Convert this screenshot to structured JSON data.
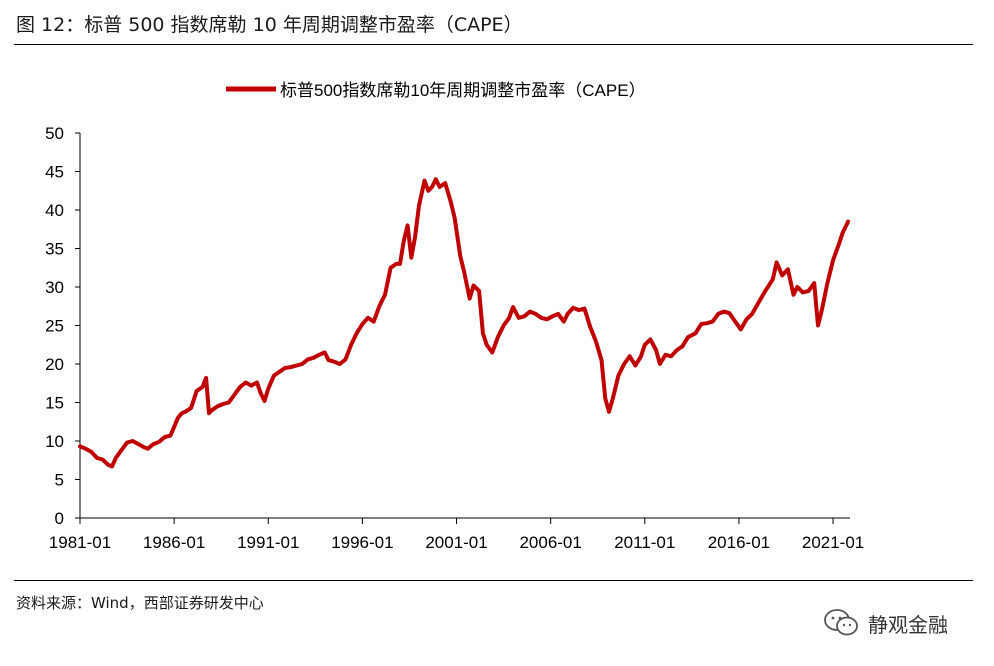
{
  "figure": {
    "title": "图 12：标普 500 指数席勒 10 年周期调整市盈率（CAPE）",
    "source": "资料来源：Wind，西部证券研发中心",
    "watermark": "静观金融"
  },
  "colors": {
    "line": "#C00000",
    "axis": "#000000"
  },
  "chart_data": {
    "type": "line",
    "title": "",
    "xlabel": "",
    "ylabel": "",
    "xlim": [
      1981.0,
      2021.9
    ],
    "ylim": [
      0,
      50
    ],
    "yticks": [
      0,
      5,
      10,
      15,
      20,
      25,
      30,
      35,
      40,
      45,
      50
    ],
    "xticks": [
      {
        "label": "1981-01",
        "value": 1981.0
      },
      {
        "label": "1986-01",
        "value": 1986.0
      },
      {
        "label": "1991-01",
        "value": 1991.0
      },
      {
        "label": "1996-01",
        "value": 1996.0
      },
      {
        "label": "2001-01",
        "value": 2001.0
      },
      {
        "label": "2006-01",
        "value": 2006.0
      },
      {
        "label": "2011-01",
        "value": 2011.0
      },
      {
        "label": "2016-01",
        "value": 2016.0
      },
      {
        "label": "2021-01",
        "value": 2021.0
      }
    ],
    "grid": false,
    "legend": "top-center",
    "series": [
      {
        "name": "标普500指数席勒10年周期调整市盈率（CAPE）",
        "points": [
          [
            1981.0,
            9.3
          ],
          [
            1981.3,
            9.0
          ],
          [
            1981.6,
            8.6
          ],
          [
            1981.9,
            7.8
          ],
          [
            1982.2,
            7.6
          ],
          [
            1982.5,
            6.9
          ],
          [
            1982.7,
            6.7
          ],
          [
            1982.9,
            7.8
          ],
          [
            1983.2,
            8.8
          ],
          [
            1983.5,
            9.8
          ],
          [
            1983.8,
            10.0
          ],
          [
            1984.1,
            9.6
          ],
          [
            1984.4,
            9.2
          ],
          [
            1984.6,
            9.0
          ],
          [
            1984.9,
            9.6
          ],
          [
            1985.2,
            9.9
          ],
          [
            1985.5,
            10.5
          ],
          [
            1985.8,
            10.7
          ],
          [
            1986.0,
            11.8
          ],
          [
            1986.2,
            13.0
          ],
          [
            1986.4,
            13.6
          ],
          [
            1986.6,
            13.8
          ],
          [
            1986.9,
            14.3
          ],
          [
            1987.2,
            16.5
          ],
          [
            1987.5,
            17.0
          ],
          [
            1987.7,
            18.2
          ],
          [
            1987.85,
            13.6
          ],
          [
            1988.0,
            14.0
          ],
          [
            1988.3,
            14.5
          ],
          [
            1988.6,
            14.8
          ],
          [
            1988.9,
            15.0
          ],
          [
            1989.2,
            16.0
          ],
          [
            1989.5,
            17.0
          ],
          [
            1989.8,
            17.6
          ],
          [
            1990.1,
            17.2
          ],
          [
            1990.4,
            17.6
          ],
          [
            1990.6,
            16.2
          ],
          [
            1990.8,
            15.2
          ],
          [
            1991.0,
            16.8
          ],
          [
            1991.3,
            18.5
          ],
          [
            1991.6,
            19.0
          ],
          [
            1991.9,
            19.5
          ],
          [
            1992.2,
            19.6
          ],
          [
            1992.5,
            19.8
          ],
          [
            1992.8,
            20.0
          ],
          [
            1993.1,
            20.6
          ],
          [
            1993.4,
            20.8
          ],
          [
            1993.7,
            21.2
          ],
          [
            1994.0,
            21.5
          ],
          [
            1994.2,
            20.5
          ],
          [
            1994.5,
            20.3
          ],
          [
            1994.8,
            20.0
          ],
          [
            1995.1,
            20.6
          ],
          [
            1995.4,
            22.5
          ],
          [
            1995.7,
            24.0
          ],
          [
            1996.0,
            25.2
          ],
          [
            1996.3,
            26.0
          ],
          [
            1996.6,
            25.5
          ],
          [
            1996.9,
            27.5
          ],
          [
            1997.2,
            29.0
          ],
          [
            1997.5,
            32.5
          ],
          [
            1997.8,
            33.0
          ],
          [
            1998.0,
            33.0
          ],
          [
            1998.2,
            36.0
          ],
          [
            1998.4,
            38.0
          ],
          [
            1998.6,
            33.8
          ],
          [
            1998.8,
            36.5
          ],
          [
            1999.0,
            40.5
          ],
          [
            1999.3,
            43.8
          ],
          [
            1999.5,
            42.5
          ],
          [
            1999.7,
            43.0
          ],
          [
            1999.9,
            44.0
          ],
          [
            2000.1,
            43.0
          ],
          [
            2000.4,
            43.5
          ],
          [
            2000.7,
            41.0
          ],
          [
            2000.9,
            39.0
          ],
          [
            2001.2,
            34.0
          ],
          [
            2001.4,
            32.0
          ],
          [
            2001.7,
            28.5
          ],
          [
            2001.9,
            30.2
          ],
          [
            2002.2,
            29.5
          ],
          [
            2002.4,
            24.0
          ],
          [
            2002.6,
            22.5
          ],
          [
            2002.9,
            21.5
          ],
          [
            2003.2,
            23.5
          ],
          [
            2003.5,
            25.0
          ],
          [
            2003.8,
            26.0
          ],
          [
            2004.0,
            27.4
          ],
          [
            2004.3,
            26.0
          ],
          [
            2004.6,
            26.2
          ],
          [
            2004.9,
            26.8
          ],
          [
            2005.2,
            26.5
          ],
          [
            2005.5,
            26.0
          ],
          [
            2005.8,
            25.8
          ],
          [
            2006.1,
            26.2
          ],
          [
            2006.4,
            26.5
          ],
          [
            2006.7,
            25.5
          ],
          [
            2006.9,
            26.5
          ],
          [
            2007.2,
            27.3
          ],
          [
            2007.5,
            27.0
          ],
          [
            2007.8,
            27.2
          ],
          [
            2008.1,
            24.8
          ],
          [
            2008.4,
            23.0
          ],
          [
            2008.7,
            20.5
          ],
          [
            2008.9,
            15.5
          ],
          [
            2009.1,
            13.8
          ],
          [
            2009.3,
            15.5
          ],
          [
            2009.6,
            18.5
          ],
          [
            2009.9,
            20.0
          ],
          [
            2010.2,
            21.0
          ],
          [
            2010.5,
            19.8
          ],
          [
            2010.8,
            21.0
          ],
          [
            2011.0,
            22.5
          ],
          [
            2011.3,
            23.2
          ],
          [
            2011.6,
            21.8
          ],
          [
            2011.8,
            20.0
          ],
          [
            2012.1,
            21.2
          ],
          [
            2012.4,
            21.0
          ],
          [
            2012.7,
            21.8
          ],
          [
            2013.0,
            22.3
          ],
          [
            2013.3,
            23.5
          ],
          [
            2013.7,
            24.0
          ],
          [
            2014.0,
            25.2
          ],
          [
            2014.3,
            25.3
          ],
          [
            2014.6,
            25.5
          ],
          [
            2014.9,
            26.5
          ],
          [
            2015.2,
            26.8
          ],
          [
            2015.5,
            26.6
          ],
          [
            2015.8,
            25.5
          ],
          [
            2016.1,
            24.5
          ],
          [
            2016.4,
            25.8
          ],
          [
            2016.7,
            26.5
          ],
          [
            2017.0,
            27.8
          ],
          [
            2017.4,
            29.5
          ],
          [
            2017.8,
            31.0
          ],
          [
            2018.0,
            33.2
          ],
          [
            2018.3,
            31.5
          ],
          [
            2018.6,
            32.3
          ],
          [
            2018.9,
            29.0
          ],
          [
            2019.1,
            30.0
          ],
          [
            2019.4,
            29.3
          ],
          [
            2019.7,
            29.5
          ],
          [
            2020.0,
            30.5
          ],
          [
            2020.2,
            25.0
          ],
          [
            2020.4,
            27.0
          ],
          [
            2020.7,
            30.5
          ],
          [
            2021.0,
            33.5
          ],
          [
            2021.3,
            35.5
          ],
          [
            2021.5,
            37.0
          ],
          [
            2021.8,
            38.5
          ]
        ]
      }
    ]
  }
}
